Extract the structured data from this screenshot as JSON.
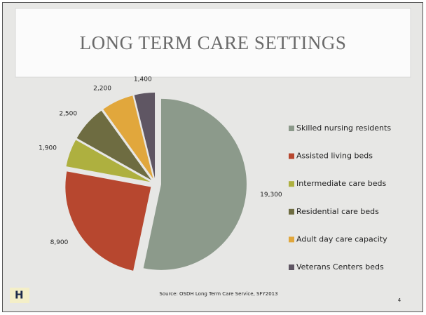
{
  "chart_data": {
    "type": "pie",
    "title": "LONG TERM CARE SETTINGS",
    "categories": [
      "Skilled nursing residents",
      "Assisted living beds",
      "Intermediate care beds",
      "Residential care beds",
      "Adult day care capacity",
      "Veterans Centers beds"
    ],
    "values": [
      19300,
      8900,
      1900,
      2500,
      2200,
      1400
    ],
    "value_labels": [
      "19,300",
      "8,900",
      "1,900",
      "2,500",
      "2,200",
      "1,400"
    ],
    "colors": [
      "#8c9a8b",
      "#b7472f",
      "#aeb03f",
      "#6e6c41",
      "#e1a73c",
      "#5f5663"
    ],
    "legend": "right",
    "source": "Source: OSDH Long Term Care Service, SFY2013",
    "page_number": "4",
    "logo_text": "H"
  }
}
